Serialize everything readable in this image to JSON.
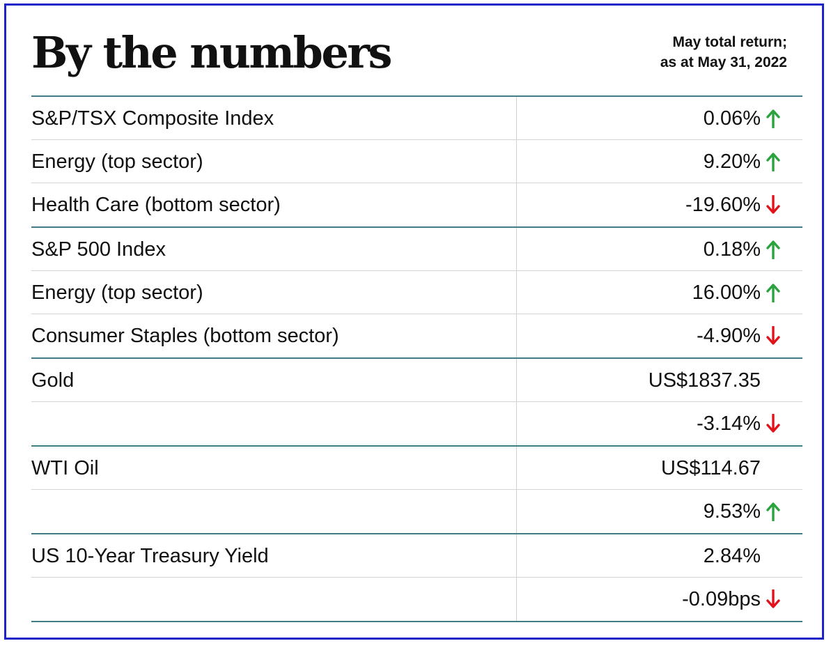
{
  "header": {
    "title": "By the numbers",
    "note_line1": "May total return;",
    "note_line2": "as at May 31, 2022"
  },
  "colors": {
    "frame": "#1e23c8",
    "rule": "#3f7f83",
    "up": "#2aa33f",
    "down": "#e0121b"
  },
  "groups": [
    {
      "rows": [
        {
          "label": "S&P/TSX Composite Index",
          "value": "0.06%",
          "arrow": "up"
        },
        {
          "label": "Energy (top sector)",
          "value": "9.20%",
          "arrow": "up"
        },
        {
          "label": "Health Care (bottom sector)",
          "value": "-19.60%",
          "arrow": "down"
        }
      ]
    },
    {
      "rows": [
        {
          "label": "S&P 500 Index",
          "value": "0.18%",
          "arrow": "up"
        },
        {
          "label": "Energy (top sector)",
          "value": "16.00%",
          "arrow": "up"
        },
        {
          "label": "Consumer Staples (bottom sector)",
          "value": "-4.90%",
          "arrow": "down"
        }
      ]
    },
    {
      "rows": [
        {
          "label": "Gold",
          "value": "US$1837.35",
          "arrow": ""
        },
        {
          "label": "",
          "value": "-3.14%",
          "arrow": "down"
        }
      ]
    },
    {
      "rows": [
        {
          "label": "WTI Oil",
          "value": "US$114.67",
          "arrow": ""
        },
        {
          "label": "",
          "value": "9.53%",
          "arrow": "up"
        }
      ]
    },
    {
      "rows": [
        {
          "label": "US 10-Year Treasury Yield",
          "value": "2.84%",
          "arrow": ""
        },
        {
          "label": "",
          "value": "-0.09bps",
          "arrow": "down"
        }
      ]
    }
  ]
}
